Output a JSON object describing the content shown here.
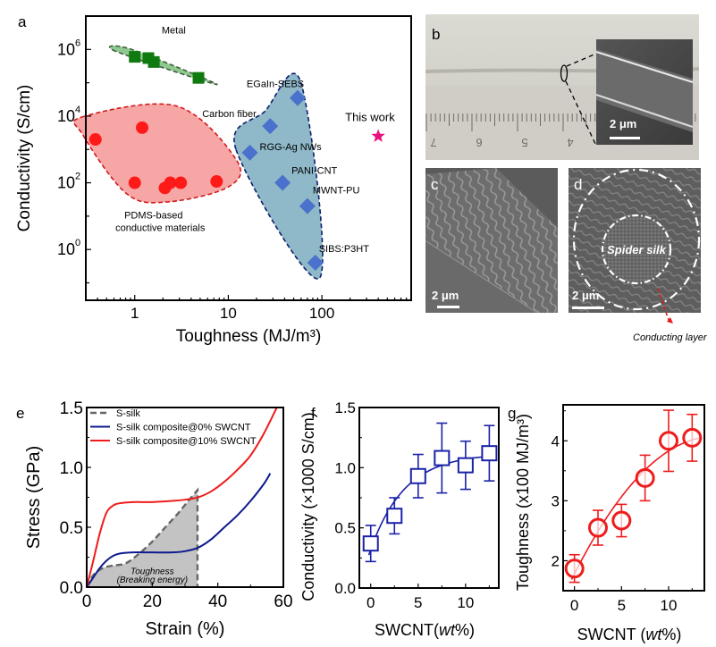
{
  "chart_data": [
    {
      "panel": "a",
      "type": "scatter",
      "xscale": "log",
      "yscale": "log",
      "xlabel": "Toughness (MJ/m³)",
      "ylabel": "Conductivity (S/cm)",
      "xlim": [
        0.3,
        900
      ],
      "ylim": [
        0.03,
        10000000
      ],
      "xticks": [
        1,
        10,
        100
      ],
      "xtick_labels": [
        "1",
        "10",
        "100"
      ],
      "yticks": [
        1,
        100,
        10000,
        1000000
      ],
      "ytick_labels": [
        "10",
        "10",
        "10",
        "10"
      ],
      "ytick_exponents": [
        "0",
        "2",
        "4",
        "6"
      ],
      "groups": [
        {
          "name": "Metal",
          "label": "Metal",
          "marker": "square",
          "color": "#0f7a0f",
          "region_color": "#8fc98f",
          "points": [
            [
              1.0,
              600000
            ],
            [
              1.4,
              550000
            ],
            [
              1.6,
              420000
            ],
            [
              4.8,
              140000
            ]
          ]
        },
        {
          "name": "PDMS",
          "label": "PDMS-based conductive materials",
          "label_lines": [
            "PDMS-based",
            "conductive materials"
          ],
          "marker": "circle",
          "color": "#ff1a1a",
          "region_color": "#f7a6a6",
          "points": [
            [
              0.38,
              2000
            ],
            [
              1.2,
              4500
            ],
            [
              1.0,
              100
            ],
            [
              2.1,
              70
            ],
            [
              2.4,
              100
            ],
            [
              3.1,
              100
            ],
            [
              7.5,
              110
            ]
          ]
        },
        {
          "name": "Others",
          "label": "",
          "marker": "diamond",
          "color": "#4a72cc",
          "region_color": "#8fb8c8",
          "points": [
            {
              "x": 55,
              "y": 35000,
              "label": "EGaIn-SEBS"
            },
            {
              "x": 28,
              "y": 5000,
              "label": "Carbon fiber"
            },
            {
              "x": 17,
              "y": 800,
              "label": "RGG-Ag NWs"
            },
            {
              "x": 38,
              "y": 100,
              "label": "PANI-CNT"
            },
            {
              "x": 70,
              "y": 20,
              "label": "MWNT-PU"
            },
            {
              "x": 85,
              "y": 0.4,
              "label": "SIBS:P3HT"
            }
          ]
        },
        {
          "name": "This work",
          "label": "This work",
          "marker": "star",
          "color": "#e8117f",
          "points": [
            [
              400,
              2500
            ]
          ]
        }
      ]
    },
    {
      "panel": "e",
      "type": "line",
      "xlabel": "Strain (%)",
      "ylabel": "Stress (GPa)",
      "xlim": [
        0,
        60
      ],
      "ylim": [
        0,
        1.5
      ],
      "xticks": [
        0,
        20,
        40,
        60
      ],
      "yticks": [
        0.0,
        0.5,
        1.0,
        1.5
      ],
      "ytick_labels": [
        "0.0",
        "0.5",
        "1.0",
        "1.5"
      ],
      "series": [
        {
          "name": "S-silk",
          "style": "dashed",
          "color": "#666666",
          "filled": true,
          "fill_color": "#c3c3c3",
          "x": [
            0,
            2,
            5,
            8,
            12,
            16,
            20,
            24,
            28,
            31,
            33.8,
            34,
            34
          ],
          "y": [
            0,
            0.1,
            0.16,
            0.18,
            0.2,
            0.28,
            0.38,
            0.5,
            0.62,
            0.72,
            0.81,
            0.4,
            0.0
          ]
        },
        {
          "name": "S-silk composite@0% SWCNT",
          "style": "solid",
          "color": "#0d1a8c",
          "x": [
            0,
            2,
            4,
            6,
            8,
            10,
            14,
            20,
            26,
            30,
            34,
            38,
            42,
            46,
            50,
            54,
            56
          ],
          "y": [
            0,
            0.08,
            0.16,
            0.22,
            0.26,
            0.28,
            0.29,
            0.29,
            0.29,
            0.3,
            0.33,
            0.4,
            0.5,
            0.6,
            0.72,
            0.86,
            0.95
          ]
        },
        {
          "name": "S-silk composite@10% SWCNT",
          "style": "solid",
          "color": "#ee1c1c",
          "x": [
            0,
            2,
            4,
            6,
            8,
            10,
            14,
            20,
            26,
            30,
            34,
            38,
            42,
            46,
            50,
            54,
            58
          ],
          "y": [
            0,
            0.22,
            0.45,
            0.62,
            0.68,
            0.7,
            0.71,
            0.71,
            0.72,
            0.73,
            0.75,
            0.8,
            0.88,
            0.98,
            1.1,
            1.28,
            1.5
          ]
        }
      ],
      "annotation": [
        "Toughness",
        "(Breaking energy)"
      ],
      "legend_position": "top-left"
    },
    {
      "panel": "f",
      "type": "scatter",
      "xlabel": "SWCNT(wt%)",
      "xlabel_parts": [
        "SWCNT(",
        "wt",
        "%)"
      ],
      "ylabel": "Conductivity (×1000 S/cm)",
      "xlim": [
        -1.2,
        13.5
      ],
      "ylim": [
        0,
        1.5
      ],
      "xticks": [
        0,
        5,
        10
      ],
      "yticks": [
        0.0,
        0.5,
        1.0,
        1.5
      ],
      "ytick_labels": [
        "0.0",
        "0.5",
        "1.0",
        "1.5"
      ],
      "color": "#1a22a6",
      "marker": "open-square",
      "x": [
        0,
        2.5,
        5,
        7.5,
        10,
        12.5
      ],
      "y": [
        0.37,
        0.6,
        0.93,
        1.08,
        1.02,
        1.12
      ],
      "err": [
        0.15,
        0.15,
        0.18,
        0.29,
        0.2,
        0.23
      ],
      "fit": "exponential-saturation"
    },
    {
      "panel": "g",
      "type": "scatter",
      "xlabel": "SWCNT (wt%)",
      "xlabel_parts": [
        "SWCNT (",
        "wt",
        "%)"
      ],
      "ylabel": "Toughness (x100 MJ/m³)",
      "xlim": [
        -1.2,
        13.8
      ],
      "ylim": [
        1.5,
        4.6
      ],
      "xticks": [
        0,
        5,
        10
      ],
      "yticks": [
        2,
        3,
        4
      ],
      "ytick_labels": [
        "2",
        "3",
        "4"
      ],
      "color": "#ee1c1c",
      "marker": "open-circle",
      "x": [
        0,
        2.5,
        5,
        7.5,
        10,
        12.5
      ],
      "y": [
        1.87,
        2.55,
        2.67,
        3.38,
        4.0,
        4.05
      ],
      "err": [
        0.23,
        0.29,
        0.27,
        0.38,
        0.51,
        0.39
      ],
      "fit": "smooth-increasing"
    }
  ],
  "panel_labels": {
    "a": "a",
    "b": "b",
    "c": "c",
    "d": "d",
    "e": "e",
    "f": "f",
    "g": "g"
  },
  "images": {
    "b": {
      "scale_bar": "2 μm"
    },
    "c": {
      "scale_bar": "2 μm"
    },
    "d": {
      "scale_bar": "2 μm",
      "inner_label": "Spider silk",
      "callout": "Conducting layer"
    }
  },
  "ruler_numbers": [
    "7",
    "6",
    "5",
    "4"
  ]
}
